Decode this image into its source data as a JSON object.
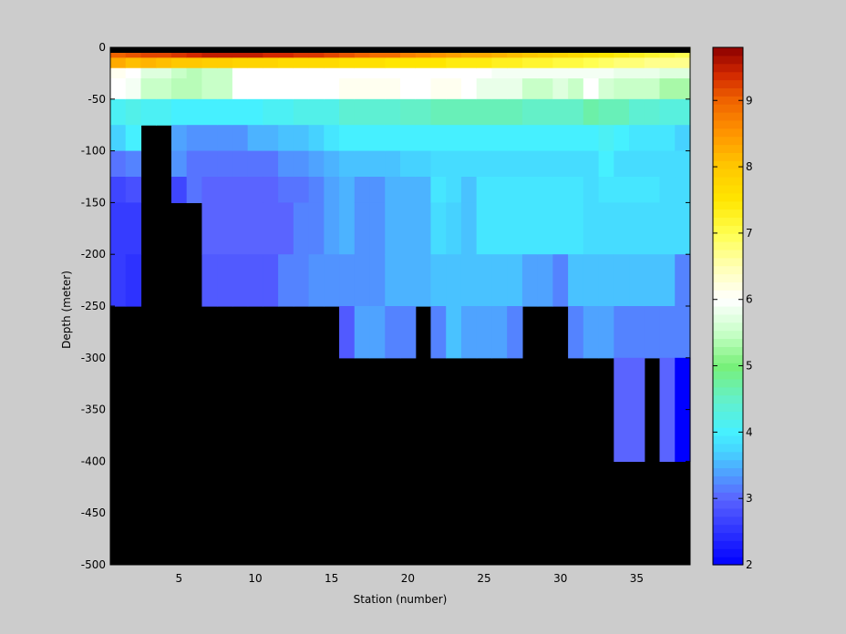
{
  "chart_data": {
    "type": "heatmap",
    "title": "",
    "xlabel": "Station (number)",
    "ylabel": "Depth (meter)",
    "xlim": [
      1,
      38
    ],
    "ylim": [
      -500,
      0
    ],
    "x_ticks": [
      5,
      10,
      15,
      20,
      25,
      30,
      35
    ],
    "y_ticks": [
      0,
      -50,
      -100,
      -150,
      -200,
      -250,
      -300,
      -350,
      -400,
      -450,
      -500
    ],
    "colorbar": {
      "range": [
        2,
        9.8
      ],
      "ticks": [
        2,
        3,
        4,
        5,
        6,
        7,
        8,
        9
      ],
      "colormap": "jet-with-white-center",
      "colormap_anchors": [
        [
          2.0,
          "#0000ff"
        ],
        [
          3.0,
          "#5a64ff"
        ],
        [
          3.7,
          "#46d2ff"
        ],
        [
          4.0,
          "#46f0ff"
        ],
        [
          4.5,
          "#64f0c8"
        ],
        [
          5.0,
          "#78f078"
        ],
        [
          5.5,
          "#c8ffc8"
        ],
        [
          6.0,
          "#ffffff"
        ],
        [
          6.5,
          "#ffffb4"
        ],
        [
          7.0,
          "#ffff50"
        ],
        [
          7.5,
          "#ffe600"
        ],
        [
          8.0,
          "#ffc800"
        ],
        [
          8.5,
          "#ff9600"
        ],
        [
          9.0,
          "#f06400"
        ],
        [
          9.4,
          "#d22800"
        ],
        [
          9.8,
          "#8c0000"
        ]
      ]
    },
    "masked_color": "#000000",
    "stations": [
      1,
      2,
      3,
      4,
      5,
      6,
      7,
      8,
      9,
      10,
      11,
      12,
      13,
      14,
      15,
      16,
      17,
      18,
      19,
      20,
      21,
      22,
      23,
      24,
      25,
      26,
      27,
      28,
      29,
      30,
      31,
      32,
      33,
      34,
      35,
      36,
      37,
      38
    ],
    "depth_levels": [
      0,
      -10,
      -20,
      -30,
      -50,
      -75,
      -100,
      -125,
      -150,
      -200,
      -250,
      -300,
      -400,
      -500
    ],
    "bottom_depth": [
      -250,
      -250,
      -75,
      -75,
      -150,
      -150,
      -250,
      -250,
      -250,
      -250,
      -250,
      -250,
      -250,
      -250,
      -250,
      -300,
      -300,
      -300,
      -300,
      -300,
      -250,
      -300,
      -300,
      -300,
      -300,
      -300,
      -300,
      -250,
      -250,
      -250,
      -300,
      -300,
      -300,
      -400,
      -400,
      -300,
      -400,
      -400
    ],
    "values": [
      [
        9.0,
        9.1,
        9.2,
        9.2,
        9.3,
        9.4,
        9.5,
        9.5,
        9.5,
        9.5,
        9.4,
        9.4,
        9.3,
        9.3,
        9.2,
        9.1,
        9.0,
        8.9,
        8.9,
        8.7,
        8.6,
        8.5,
        8.4,
        8.3,
        8.3,
        8.2,
        8.1,
        8.0,
        7.9,
        7.8,
        7.7,
        7.6,
        7.5,
        7.4,
        7.3,
        7.2,
        7.1,
        7.0
      ],
      [
        8.3,
        8.1,
        8.2,
        8.1,
        8.0,
        8.0,
        7.9,
        7.9,
        7.8,
        7.8,
        7.8,
        7.7,
        7.7,
        7.7,
        7.7,
        7.6,
        7.6,
        7.6,
        7.5,
        7.5,
        7.5,
        7.5,
        7.4,
        7.4,
        7.4,
        7.3,
        7.3,
        7.2,
        7.2,
        7.1,
        7.1,
        7.0,
        6.9,
        6.8,
        6.8,
        6.7,
        6.7,
        6.7
      ],
      [
        6.1,
        6.0,
        5.7,
        5.7,
        5.5,
        5.4,
        5.5,
        5.5,
        6.0,
        6.0,
        6.0,
        6.0,
        6.0,
        6.0,
        6.0,
        6.0,
        6.0,
        6.0,
        6.0,
        6.0,
        6.0,
        6.0,
        6.0,
        6.0,
        6.0,
        5.9,
        5.9,
        5.9,
        5.9,
        5.9,
        5.9,
        5.9,
        5.9,
        5.8,
        5.8,
        5.8,
        5.7,
        5.7
      ],
      [
        6.0,
        5.9,
        5.5,
        5.5,
        5.4,
        5.4,
        5.5,
        5.5,
        6.0,
        6.0,
        6.0,
        6.0,
        6.0,
        6.0,
        6.0,
        6.1,
        6.1,
        6.1,
        6.1,
        6.0,
        6.0,
        6.1,
        6.1,
        6.0,
        5.8,
        5.8,
        5.8,
        5.5,
        5.5,
        5.7,
        5.5,
        6.0,
        5.6,
        5.5,
        5.5,
        5.5,
        5.3,
        5.3
      ],
      [
        4.1,
        4.2,
        4.1,
        4.1,
        4.0,
        4.0,
        4.0,
        4.0,
        4.0,
        4.0,
        4.1,
        4.1,
        4.2,
        4.2,
        4.2,
        4.4,
        4.4,
        4.4,
        4.4,
        4.5,
        4.5,
        4.6,
        4.6,
        4.6,
        4.6,
        4.6,
        4.6,
        4.5,
        4.5,
        4.5,
        4.5,
        4.7,
        4.6,
        4.6,
        4.4,
        4.4,
        4.3,
        4.3
      ],
      [
        3.7,
        4.0,
        3.6,
        3.6,
        3.4,
        3.3,
        3.3,
        3.3,
        3.3,
        3.5,
        3.5,
        3.6,
        3.6,
        3.7,
        3.9,
        4.0,
        4.0,
        4.0,
        4.0,
        4.0,
        4.0,
        4.0,
        4.0,
        4.0,
        4.0,
        4.0,
        4.0,
        4.0,
        4.0,
        4.0,
        4.0,
        4.0,
        4.1,
        4.0,
        3.9,
        3.9,
        3.9,
        3.7
      ],
      [
        3.1,
        3.2,
        3.3,
        3.3,
        3.3,
        3.1,
        3.1,
        3.1,
        3.1,
        3.1,
        3.1,
        3.3,
        3.3,
        3.4,
        3.5,
        3.6,
        3.6,
        3.6,
        3.6,
        3.7,
        3.7,
        3.8,
        3.8,
        3.8,
        3.8,
        3.8,
        3.8,
        3.8,
        3.8,
        3.8,
        3.8,
        3.8,
        4.0,
        3.8,
        3.8,
        3.8,
        3.8,
        3.8
      ],
      [
        2.7,
        2.8,
        3.0,
        3.0,
        2.7,
        3.1,
        3.0,
        3.0,
        3.0,
        3.0,
        3.0,
        3.1,
        3.1,
        3.2,
        3.4,
        3.5,
        3.3,
        3.3,
        3.5,
        3.5,
        3.5,
        3.9,
        3.8,
        3.6,
        3.9,
        3.9,
        3.9,
        3.9,
        3.9,
        3.9,
        3.9,
        3.8,
        3.9,
        3.9,
        3.9,
        3.9,
        3.8,
        3.8
      ],
      [
        2.6,
        2.6,
        2.7,
        2.7,
        2.7,
        2.7,
        3.0,
        3.0,
        3.0,
        3.0,
        3.0,
        3.0,
        3.2,
        3.2,
        3.4,
        3.5,
        3.3,
        3.3,
        3.5,
        3.5,
        3.5,
        3.8,
        3.7,
        3.6,
        3.9,
        3.9,
        3.9,
        3.9,
        3.9,
        3.9,
        3.9,
        3.8,
        3.8,
        3.8,
        3.8,
        3.8,
        3.8,
        3.8
      ],
      [
        2.6,
        2.5,
        2.7,
        2.7,
        2.7,
        2.7,
        2.9,
        2.9,
        2.9,
        2.9,
        2.9,
        3.2,
        3.2,
        3.3,
        3.3,
        3.3,
        3.3,
        3.3,
        3.5,
        3.5,
        3.5,
        3.6,
        3.6,
        3.6,
        3.6,
        3.6,
        3.6,
        3.4,
        3.4,
        3.2,
        3.6,
        3.6,
        3.6,
        3.6,
        3.6,
        3.6,
        3.6,
        3.2
      ],
      [
        2.6,
        2.6,
        2.7,
        2.7,
        2.7,
        2.7,
        2.9,
        2.9,
        2.9,
        2.9,
        2.9,
        2.9,
        2.9,
        2.9,
        2.9,
        2.9,
        3.4,
        3.4,
        3.2,
        3.2,
        3.2,
        3.2,
        3.6,
        3.4,
        3.4,
        3.4,
        3.2,
        3.2,
        3.2,
        3.2,
        3.2,
        3.4,
        3.4,
        3.2,
        3.2,
        3.2,
        3.2,
        3.2
      ],
      [
        2.6,
        2.6,
        2.7,
        2.7,
        2.7,
        2.7,
        2.9,
        2.9,
        2.9,
        2.9,
        2.9,
        2.9,
        2.9,
        2.9,
        2.9,
        2.9,
        2.9,
        2.9,
        2.9,
        2.9,
        2.9,
        2.9,
        2.9,
        2.9,
        2.9,
        2.9,
        2.9,
        2.9,
        2.9,
        2.9,
        2.9,
        2.9,
        2.9,
        3.0,
        3.0,
        3.0,
        3.0,
        2.0
      ],
      [
        2.6,
        2.6,
        2.7,
        2.7,
        2.7,
        2.7,
        2.9,
        2.9,
        2.9,
        2.9,
        2.9,
        2.9,
        2.9,
        2.9,
        2.9,
        2.9,
        2.9,
        2.9,
        2.9,
        2.9,
        2.9,
        2.9,
        2.9,
        2.9,
        2.9,
        2.9,
        2.9,
        2.9,
        2.9,
        2.9,
        2.9,
        2.9,
        2.9,
        2.9,
        2.9,
        2.9,
        2.9,
        2.9
      ]
    ]
  }
}
